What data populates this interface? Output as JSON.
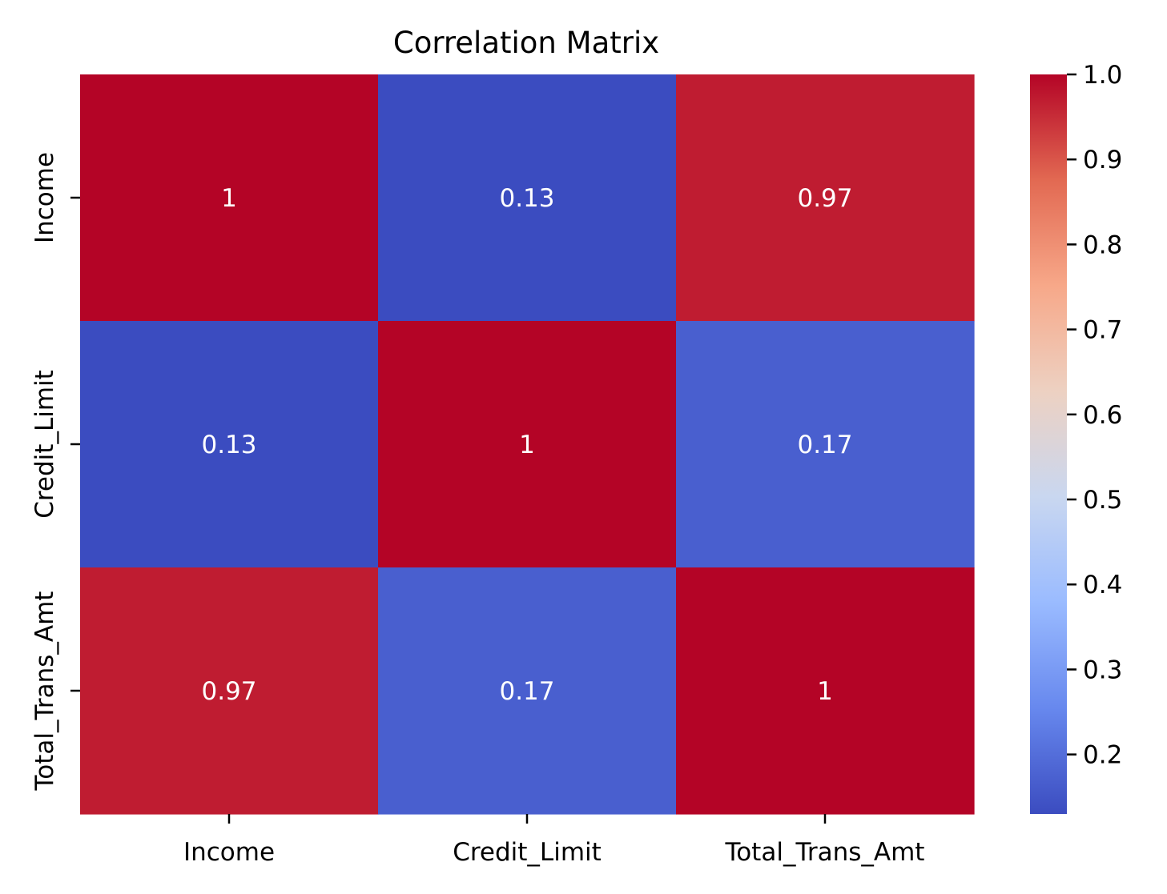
{
  "chart_data": {
    "type": "heatmap",
    "title": "Correlation Matrix",
    "x_labels": [
      "Income",
      "Credit_Limit",
      "Total_Trans_Amt"
    ],
    "y_labels": [
      "Income",
      "Credit_Limit",
      "Total_Trans_Amt"
    ],
    "values": [
      [
        1,
        0.13,
        0.97
      ],
      [
        0.13,
        1,
        0.17
      ],
      [
        0.97,
        0.17,
        1
      ]
    ],
    "cell_labels": [
      [
        "1",
        "0.13",
        "0.97"
      ],
      [
        "0.13",
        "1",
        "0.17"
      ],
      [
        "0.97",
        "0.17",
        "1"
      ]
    ],
    "colorbar": {
      "min": 0.13,
      "max": 1.0,
      "ticks": [
        0.2,
        0.3,
        0.4,
        0.5,
        0.6,
        0.7,
        0.8,
        0.9,
        1.0
      ],
      "tick_labels": [
        "0.2",
        "0.3",
        "0.4",
        "0.5",
        "0.6",
        "0.7",
        "0.8",
        "0.9",
        "1.0"
      ],
      "colormap": "coolwarm",
      "colormap_stops": [
        "#3b4cc0",
        "#6788ee",
        "#9abbff",
        "#c9d7f0",
        "#edd1c2",
        "#f7a889",
        "#e26952",
        "#b40426"
      ]
    },
    "grid": false,
    "legend": "colorbar-right"
  }
}
